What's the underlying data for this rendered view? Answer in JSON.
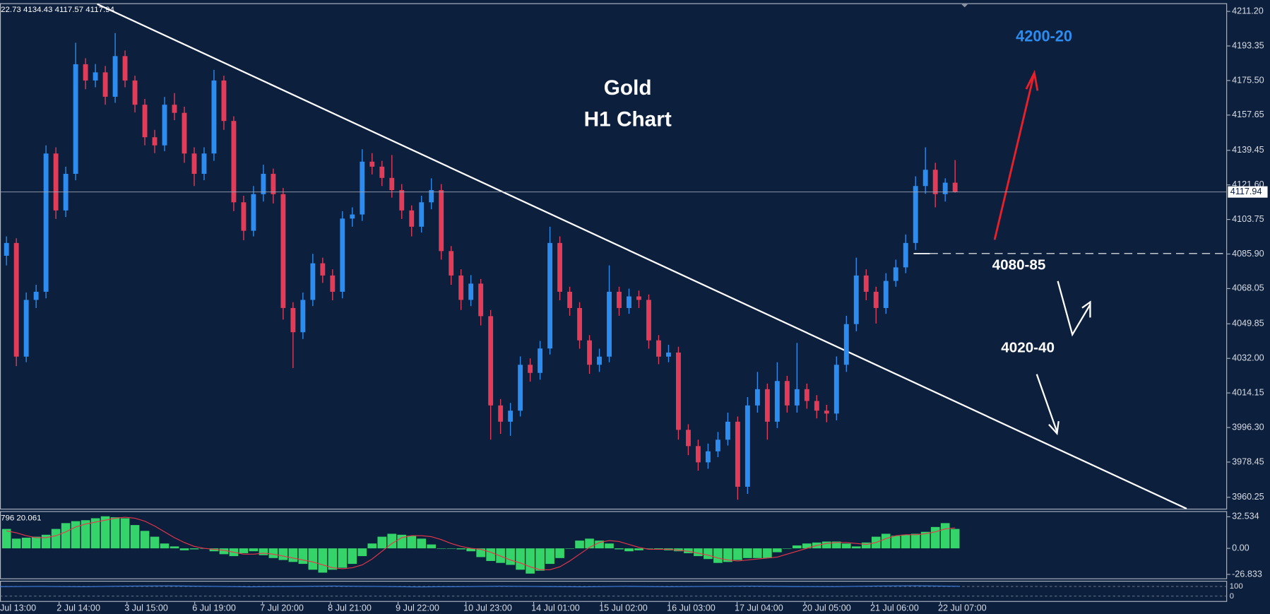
{
  "chart_data": {
    "type": "candlestick",
    "ohlc_header": "22.73 4134.43 4117.57 4117.94",
    "annotations": {
      "title_line1": "Gold",
      "title_line2": "H1 Chart",
      "target_up": "4200-20",
      "level_resistance": "4080-85",
      "level_support": "4020-40"
    },
    "up_color": "#2d8cf0",
    "down_color": "#e23c58",
    "ylim": [
      3953.95,
      4215.4
    ],
    "yticks": [
      {
        "value": 4211.2,
        "label": "4211.20"
      },
      4193.35,
      {
        "value": 4175.5,
        "label": "4175.50"
      },
      4157.65,
      4139.45,
      {
        "value": 4121.6,
        "label": "4121.60"
      },
      4103.75,
      {
        "value": 4085.9,
        "label": "4085.90"
      },
      4068.05,
      4049.85,
      {
        "value": 4032,
        "label": "4032.00"
      },
      4014.15,
      {
        "value": 3996.3,
        "label": "3996.30"
      },
      3978.45,
      3960.25
    ],
    "current_price": 4117.94,
    "x_labels": [
      "Jul 13:00",
      "2 Jul 14:00",
      "3 Jul 15:00",
      "6 Jul 19:00",
      "7 Jul 20:00",
      "8 Jul 21:00",
      "9 Jul 22:00",
      "10 Jul 23:00",
      "14 Jul 01:00",
      "15 Jul 02:00",
      "16 Jul 03:00",
      "17 Jul 04:00",
      "20 Jul 05:00",
      "21 Jul 06:00",
      "22 Jul 07:00"
    ],
    "candles": [
      [
        4085,
        4095,
        4080,
        4091.6
      ],
      [
        4091.6,
        4094,
        4028,
        4032.9
      ],
      [
        4032.9,
        4066,
        4030,
        4062.2
      ],
      [
        4062.2,
        4070,
        4058,
        4066.4
      ],
      [
        4066.4,
        4142,
        4063,
        4137.8
      ],
      [
        4137.8,
        4141,
        4104,
        4108.4
      ],
      [
        4108.4,
        4131,
        4105,
        4127.3
      ],
      [
        4127.3,
        4195,
        4124,
        4183.9
      ],
      [
        4183.9,
        4187,
        4171,
        4175.5
      ],
      [
        4175.5,
        4184,
        4172,
        4179.7
      ],
      [
        4179.7,
        4183,
        4163,
        4167.1
      ],
      [
        4167.1,
        4200,
        4164,
        4188.1
      ],
      [
        4188.1,
        4191,
        4172,
        4175.5
      ],
      [
        4175.5,
        4178,
        4159,
        4163
      ],
      [
        4163,
        4166,
        4142,
        4146.2
      ],
      [
        4146.2,
        4150,
        4138,
        4142
      ],
      [
        4142,
        4167,
        4139,
        4163
      ],
      [
        4163,
        4169,
        4155,
        4158.8
      ],
      [
        4158.8,
        4162,
        4133,
        4137.8
      ],
      [
        4137.8,
        4141,
        4121,
        4127.3
      ],
      [
        4127.3,
        4141,
        4124,
        4137.8
      ],
      [
        4137.8,
        4181,
        4134,
        4175.5
      ],
      [
        4175.5,
        4178,
        4150,
        4154.6
      ],
      [
        4154.6,
        4157,
        4108,
        4112.6
      ],
      [
        4112.6,
        4116,
        4093,
        4097.9
      ],
      [
        4097.9,
        4121,
        4095,
        4116.8
      ],
      [
        4116.8,
        4132,
        4113,
        4127.3
      ],
      [
        4127.3,
        4130,
        4112,
        4116.8
      ],
      [
        4116.8,
        4120,
        4052,
        4058
      ],
      [
        4058,
        4061,
        4027,
        4045.5
      ],
      [
        4045.5,
        4066,
        4042,
        4062.2
      ],
      [
        4062.2,
        4086,
        4059,
        4081.1
      ],
      [
        4081.1,
        4084,
        4071,
        4074.8
      ],
      [
        4074.8,
        4078,
        4062,
        4066.4
      ],
      [
        4066.4,
        4108,
        4063,
        4104.2
      ],
      [
        4104.2,
        4110,
        4100,
        4106.3
      ],
      [
        4106.3,
        4140,
        4103,
        4133.6
      ],
      [
        4133.6,
        4138,
        4127,
        4131
      ],
      [
        4131,
        4134,
        4121,
        4125.2
      ],
      [
        4125.2,
        4137,
        4115,
        4118.9
      ],
      [
        4118.9,
        4122,
        4104,
        4108.4
      ],
      [
        4108.4,
        4111,
        4095,
        4100
      ],
      [
        4100,
        4116,
        4097,
        4112.6
      ],
      [
        4112.6,
        4125,
        4109,
        4118.9
      ],
      [
        4118.9,
        4122,
        4083,
        4087.4
      ],
      [
        4087.4,
        4090,
        4070,
        4074.8
      ],
      [
        4074.8,
        4078,
        4057,
        4062.2
      ],
      [
        4062.2,
        4075,
        4059,
        4070.6
      ],
      [
        4070.6,
        4073,
        4049,
        4053.8
      ],
      [
        4053.8,
        4057,
        3990,
        4007.7
      ],
      [
        4007.7,
        4011,
        3993,
        3999.3
      ],
      [
        3999.3,
        4009,
        3992,
        4005
      ],
      [
        4005,
        4033,
        4002,
        4028.7
      ],
      [
        4028.7,
        4032,
        4020,
        4024.5
      ],
      [
        4024.5,
        4041,
        4021,
        4037.1
      ],
      [
        4037.1,
        4100,
        4034,
        4091.6
      ],
      [
        4091.6,
        4095,
        4062,
        4066.4
      ],
      [
        4066.4,
        4069,
        4054,
        4058
      ],
      [
        4058,
        4061,
        4037,
        4041.3
      ],
      [
        4041.3,
        4044,
        4024,
        4028.7
      ],
      [
        4028.7,
        4037,
        4025,
        4032.9
      ],
      [
        4032.9,
        4080,
        4030,
        4066.4
      ],
      [
        4066.4,
        4069,
        4054,
        4058
      ],
      [
        4058,
        4068,
        4055,
        4064
      ],
      [
        4064,
        4067,
        4058,
        4062.2
      ],
      [
        4062.2,
        4065,
        4037,
        4041.3
      ],
      [
        4041.3,
        4044,
        4029,
        4032.9
      ],
      [
        4032.9,
        4039,
        4030,
        4035
      ],
      [
        4035,
        4038,
        3990,
        3995.1
      ],
      [
        3995.1,
        3998,
        3982,
        3986.7
      ],
      [
        3986.7,
        3990,
        3974,
        3978.3
      ],
      [
        3978.3,
        3988,
        3975,
        3984
      ],
      [
        3984,
        3994,
        3981,
        3990
      ],
      [
        3990,
        4004,
        3987,
        3999.3
      ],
      [
        3999.3,
        4002,
        3959,
        3965.7
      ],
      [
        3965.7,
        4012,
        3962,
        4007.7
      ],
      [
        4007.7,
        4025,
        4004,
        4016.1
      ],
      [
        4016.1,
        4019,
        3990,
        3999.3
      ],
      [
        3999.3,
        4030,
        3996,
        4020.3
      ],
      [
        4020.3,
        4023,
        4004,
        4007.7
      ],
      [
        4007.7,
        4040,
        4004,
        4016.1
      ],
      [
        4016.1,
        4019,
        4006,
        4010
      ],
      [
        4010,
        4013,
        4001,
        4005
      ],
      [
        4005,
        4008,
        3999,
        4003.5
      ],
      [
        4003.5,
        4033,
        4000,
        4028.7
      ],
      [
        4028.7,
        4054,
        4025,
        4049.7
      ],
      [
        4049.7,
        4084,
        4046,
        4074.8
      ],
      [
        4074.8,
        4078,
        4062,
        4066.4
      ],
      [
        4066.4,
        4069,
        4050,
        4058
      ],
      [
        4058,
        4076,
        4055,
        4072
      ],
      [
        4072,
        4083,
        4069,
        4079
      ],
      [
        4079,
        4096,
        4076,
        4091.6
      ],
      [
        4091.6,
        4126,
        4088,
        4121
      ],
      [
        4121,
        4141,
        4117,
        4129.4
      ],
      [
        4129.4,
        4133,
        4110,
        4116.8
      ],
      [
        4116.8,
        4125,
        4113,
        4122.73
      ],
      [
        4122.73,
        4134.43,
        4117.57,
        4117.94
      ]
    ],
    "macd": {
      "header": "796 20.061",
      "ylim": [
        -30.9,
        37.5
      ],
      "yticks": [
        32.534,
        {
          "value": 0,
          "label": "0.00"
        },
        -26.833
      ],
      "histogram_color": "#35d46a",
      "signal_color": "#e8364a",
      "histogram": [
        20,
        10,
        11,
        12,
        14,
        20,
        26,
        28,
        29,
        31,
        33,
        32,
        31,
        24,
        18,
        12,
        5,
        2,
        -2,
        -1,
        0,
        -3,
        -6,
        -8,
        -5,
        -3,
        -7,
        -10,
        -12,
        -14,
        -16,
        -22,
        -25,
        -22,
        -20,
        -16,
        -8,
        5,
        12,
        15,
        14,
        13,
        10,
        4,
        0,
        0,
        -1,
        -3,
        -9,
        -13,
        -15,
        -17,
        -22,
        -26,
        -23,
        -16,
        -10,
        0,
        8,
        10,
        8,
        5,
        -1,
        -3,
        -2,
        0,
        -1,
        -2,
        -3,
        -5,
        -8,
        -11,
        -15,
        -14,
        -12,
        -10,
        -10,
        -10,
        -4,
        0,
        3,
        5,
        6,
        7,
        7,
        5,
        2,
        6,
        12,
        15,
        13,
        14,
        15,
        17,
        22,
        26,
        20
      ],
      "signal": [
        18,
        16,
        13,
        11,
        11,
        13,
        17,
        22,
        25,
        27,
        29,
        31,
        32,
        31,
        28,
        23,
        17,
        11,
        6,
        2,
        0,
        -1,
        -2,
        -4,
        -6,
        -6,
        -5,
        -6,
        -8,
        -10,
        -12,
        -14,
        -17,
        -20,
        -21,
        -20,
        -17,
        -11,
        -3,
        5,
        11,
        13,
        13,
        12,
        9,
        5,
        2,
        0,
        -1,
        -4,
        -8,
        -12,
        -15,
        -19,
        -22,
        -22,
        -19,
        -13,
        -6,
        1,
        6,
        8,
        7,
        4,
        1,
        -1,
        -1,
        -1,
        -2,
        -3,
        -5,
        -7,
        -10,
        -12,
        -13,
        -12,
        -11,
        -10,
        -9,
        -6,
        -3,
        0,
        3,
        5,
        6,
        6,
        5,
        4,
        6,
        10,
        13,
        14,
        14,
        15,
        17,
        20,
        21
      ],
      "oscillator": {
        "ylim": [
          -50,
          158
        ],
        "yticks": [
          100,
          0
        ],
        "color": "#3d7fe0",
        "values": [
          98,
          100,
          97,
          103,
          106,
          101,
          96,
          99,
          104,
          100,
          95,
          98,
          102,
          99,
          96,
          101,
          97,
          100,
          103,
          99,
          98,
          104,
          107,
          101
        ]
      }
    }
  }
}
